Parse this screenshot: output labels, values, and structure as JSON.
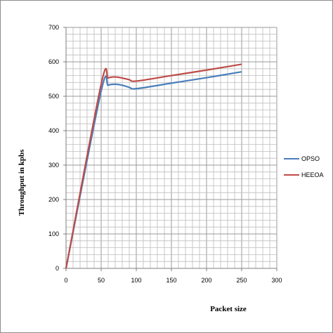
{
  "chart_data": {
    "type": "line",
    "title": "",
    "xlabel": "Packet size",
    "ylabel": "Throughput in kpbs",
    "xlim": [
      0,
      300
    ],
    "ylim": [
      0,
      700
    ],
    "x_ticks": [
      0,
      50,
      100,
      150,
      200,
      250,
      300
    ],
    "y_ticks": [
      0,
      100,
      200,
      300,
      400,
      500,
      600,
      700
    ],
    "x_minor_step": 10,
    "y_minor_step": 20,
    "grid": true,
    "legend_position": "right",
    "series": [
      {
        "name": "OPSO",
        "color": "#4a7ebb",
        "x": [
          0,
          50,
          60,
          70,
          80,
          90,
          100,
          150,
          200,
          250
        ],
        "y": [
          0,
          515,
          532,
          535,
          532,
          526,
          522,
          538,
          554,
          571
        ]
      },
      {
        "name": "HEEOA",
        "color": "#be4b48",
        "x": [
          0,
          50,
          60,
          70,
          80,
          90,
          100,
          150,
          200,
          250
        ],
        "y": [
          0,
          535,
          553,
          556,
          553,
          548,
          544,
          560,
          576,
          593
        ]
      }
    ]
  }
}
